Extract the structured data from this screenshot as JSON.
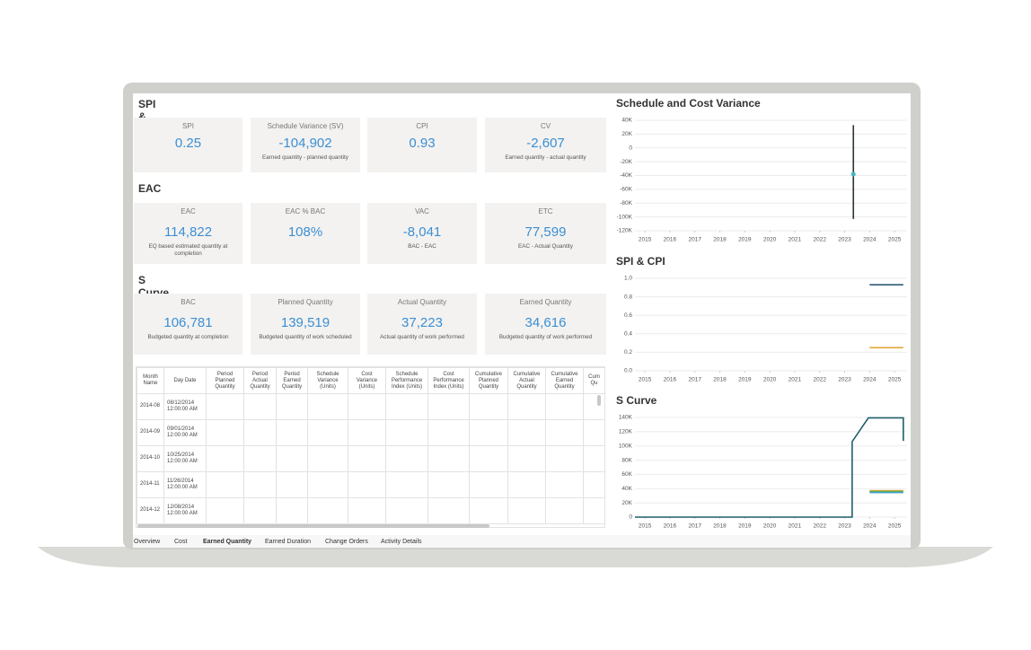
{
  "sections": [
    {
      "title": "SPI & CPI",
      "cards": [
        {
          "label": "SPI",
          "value": "0.25"
        },
        {
          "label": "Schedule Variance (SV)",
          "value": "-104,902",
          "caption": "Earned quantity - planned quantity"
        },
        {
          "label": "CPI",
          "value": "0.93"
        },
        {
          "label": "CV",
          "value": "-2,607",
          "caption": "Earned quantity - actual quantity"
        }
      ]
    },
    {
      "title": "EAC",
      "cards": [
        {
          "label": "EAC",
          "value": "114,822",
          "caption": "EQ based estimated quantity at completion"
        },
        {
          "label": "EAC % BAC",
          "value": "108%"
        },
        {
          "label": "VAC",
          "value": "-8,041",
          "caption": "BAC - EAC"
        },
        {
          "label": "ETC",
          "value": "77,599",
          "caption": "EAC - Actual Quantity"
        }
      ]
    },
    {
      "title": "S Curve",
      "cards": [
        {
          "label": "BAC",
          "value": "106,781",
          "caption": "Budgeted quantity at completion"
        },
        {
          "label": "Planned Quantity",
          "value": "139,519",
          "caption": "Budgeted quantity of work scheduled"
        },
        {
          "label": "Actual Quantity",
          "value": "37,223",
          "caption": "Actual quantity of work performed"
        },
        {
          "label": "Earned Quantity",
          "value": "34,616",
          "caption": "Budgeted quantity of work performed"
        }
      ]
    }
  ],
  "table": {
    "headers": [
      "Month Name",
      "Day Date",
      "Period Planned Quantity",
      "Period Actual Quantity",
      "Period Earned Quantity",
      "Schedule Variance (Units)",
      "Cost Variance (Units)",
      "Schedule Performance Index (Units)",
      "Cost Performance Index (Units)",
      "Cumulative Planned Quantity",
      "Cumulative Actual Quantity",
      "Cumulative Earned Quantity",
      "Cum Qu"
    ],
    "rows": [
      [
        "2014-08",
        "08/12/2014 12:00:00 AM"
      ],
      [
        "2014-09",
        "09/01/2014 12:00:00 AM"
      ],
      [
        "2014-10",
        "10/25/2014 12:00:00 AM"
      ],
      [
        "2014-11",
        "11/26/2014 12:00:00 AM"
      ],
      [
        "2014-12",
        "12/08/2014 12:00:00 AM"
      ]
    ]
  },
  "tabs": [
    "Overview",
    "Cost",
    "Earned Quantity",
    "Earned Duration",
    "Change Orders",
    "Activity Details"
  ],
  "active_tab": 2,
  "charts": [
    {
      "type": "line",
      "title": "Schedule and Cost Variance",
      "xlim": [
        2014.6,
        2025.5
      ],
      "ylim": [
        -120000,
        40000
      ],
      "xticks": [
        2015,
        2016,
        2017,
        2018,
        2019,
        2020,
        2021,
        2022,
        2023,
        2024,
        2025
      ],
      "yticks": [
        {
          "value": 40000,
          "label": "40K"
        },
        {
          "value": 20000,
          "label": "20K"
        },
        0,
        {
          "value": -20000,
          "label": "-20K"
        },
        {
          "value": -40000,
          "label": "-40K"
        },
        {
          "value": -60000,
          "label": "-60K"
        },
        {
          "value": -80000,
          "label": "-80K"
        },
        {
          "value": -100000,
          "label": "-100K"
        },
        {
          "value": -120000,
          "label": "-120K"
        }
      ],
      "series": [
        {
          "color": "#2b3438",
          "x": [
            2023.35,
            2023.35
          ],
          "values": [
            33000,
            -103000
          ]
        },
        {
          "color": "#45b5c2",
          "marker": true,
          "x": [
            2023.35
          ],
          "values": [
            -38000
          ]
        }
      ]
    },
    {
      "type": "line",
      "title": "SPI & CPI",
      "xlim": [
        2014.6,
        2025.5
      ],
      "ylim": [
        0,
        1
      ],
      "xticks": [
        2015,
        2016,
        2017,
        2018,
        2019,
        2020,
        2021,
        2022,
        2023,
        2024,
        2025
      ],
      "yticks": [
        {
          "value": 1,
          "label": "1.0"
        },
        0.8,
        0.6,
        0.4,
        0.2,
        {
          "value": 0,
          "label": "0.0"
        }
      ],
      "series": [
        {
          "color": "#2e5a78",
          "x": [
            2024,
            2025.35
          ],
          "values": [
            0.93,
            0.93
          ]
        },
        {
          "color": "#e0a030",
          "x": [
            2024,
            2025.35
          ],
          "values": [
            0.25,
            0.25
          ]
        }
      ]
    },
    {
      "type": "line",
      "title": "S Curve",
      "xlim": [
        2014.6,
        2025.5
      ],
      "ylim": [
        0,
        140000
      ],
      "xticks": [
        2015,
        2016,
        2017,
        2018,
        2019,
        2020,
        2021,
        2022,
        2023,
        2024,
        2025
      ],
      "yticks": [
        {
          "value": 140000,
          "label": "140K"
        },
        {
          "value": 120000,
          "label": "120K"
        },
        {
          "value": 100000,
          "label": "100K"
        },
        {
          "value": 80000,
          "label": "80K"
        },
        {
          "value": 60000,
          "label": "60K"
        },
        {
          "value": 40000,
          "label": "40K"
        },
        {
          "value": 20000,
          "label": "20K"
        },
        0
      ],
      "series": [
        {
          "color": "#1f5f6a",
          "x": [
            2014.6,
            2023.3,
            2023.3,
            2023.95,
            2025.35,
            2025.35
          ],
          "values": [
            0,
            0,
            106000,
            139500,
            139500,
            107000
          ]
        },
        {
          "color": "#e8a23a",
          "x": [
            2024,
            2025.35
          ],
          "values": [
            37223,
            37223
          ]
        },
        {
          "color": "#6db33f",
          "x": [
            2024,
            2025.35
          ],
          "values": [
            36000,
            36000
          ]
        },
        {
          "color": "#3aa0c8",
          "x": [
            2024,
            2025.35
          ],
          "values": [
            34616,
            34616
          ]
        }
      ]
    }
  ]
}
